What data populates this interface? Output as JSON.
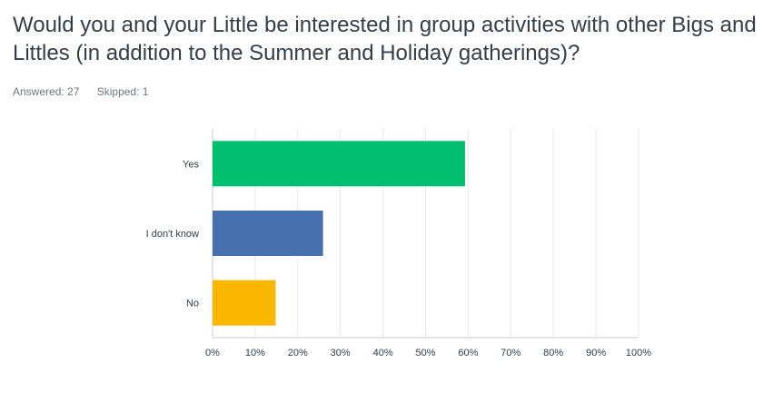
{
  "question": {
    "title": "Would you and your Little be interested in group activities with other Bigs and Littles (in addition to the Summer and Holiday gatherings)?",
    "answered": "Answered: 27",
    "skipped": "Skipped: 1"
  },
  "chart_data": {
    "type": "bar",
    "orientation": "horizontal",
    "categories": [
      "Yes",
      "I don't know",
      "No"
    ],
    "values": [
      59.26,
      25.93,
      14.81
    ],
    "colors": [
      "#00bf6f",
      "#4670ae",
      "#f9b700"
    ],
    "xlim": [
      0,
      100
    ],
    "x_ticks": [
      "0%",
      "10%",
      "20%",
      "30%",
      "40%",
      "50%",
      "60%",
      "70%",
      "80%",
      "90%",
      "100%"
    ],
    "grid": true
  }
}
